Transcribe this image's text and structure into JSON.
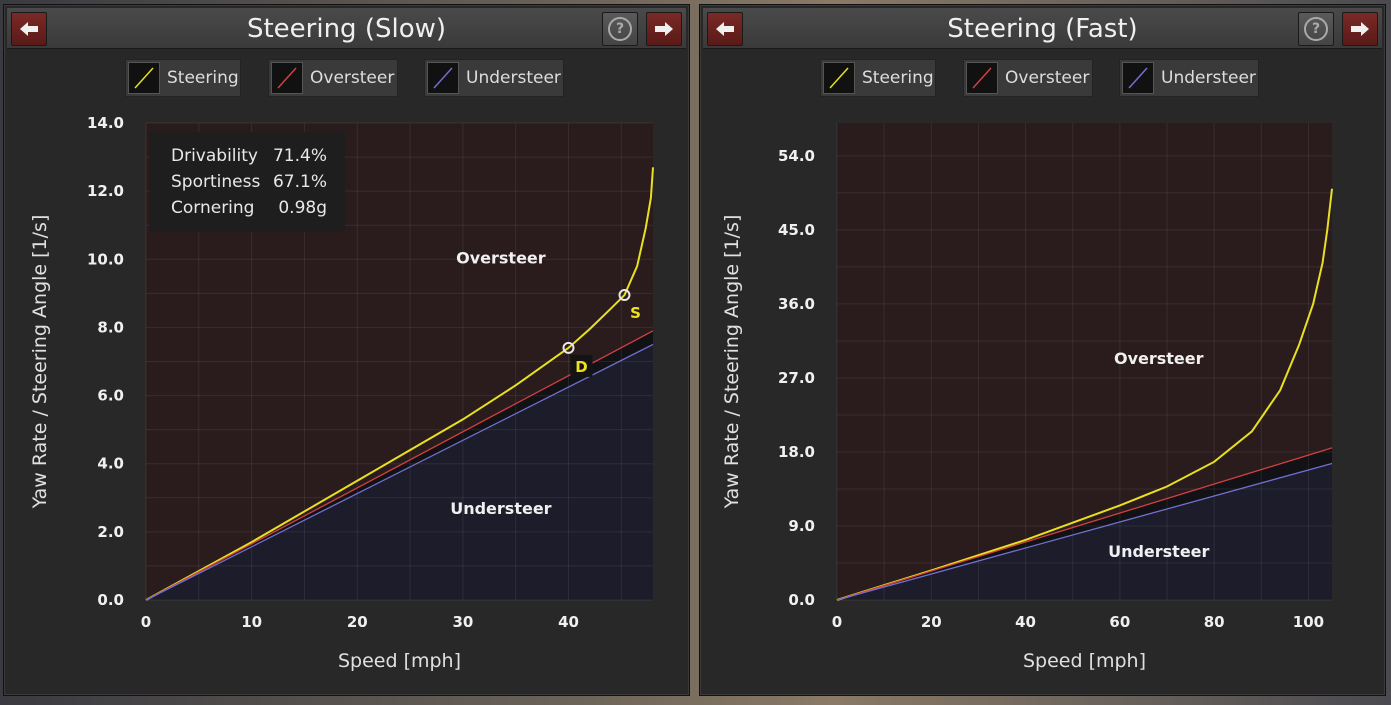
{
  "panels": [
    {
      "title": "Steering (Slow)",
      "legend": [
        {
          "label": "Steering",
          "color": "#e8e020"
        },
        {
          "label": "Oversteer",
          "color": "#d04040"
        },
        {
          "label": "Understeer",
          "color": "#7070d0"
        }
      ],
      "stats": [
        {
          "label": "Drivability",
          "value": "71.4%"
        },
        {
          "label": "Sportiness",
          "value": "67.1%"
        },
        {
          "label": "Cornering",
          "value": "0.98g"
        }
      ],
      "region_labels": {
        "over": "Oversteer",
        "under": "Understeer"
      },
      "markers": [
        {
          "label": "D",
          "x": 40,
          "y": 7.4
        },
        {
          "label": "S",
          "x": 45.3,
          "y": 8.95
        }
      ]
    },
    {
      "title": "Steering (Fast)",
      "legend": [
        {
          "label": "Steering",
          "color": "#e8e020"
        },
        {
          "label": "Oversteer",
          "color": "#d04040"
        },
        {
          "label": "Understeer",
          "color": "#7070d0"
        }
      ],
      "region_labels": {
        "over": "Oversteer",
        "under": "Understeer"
      }
    }
  ],
  "chart_data": [
    {
      "type": "line",
      "xlabel": "Speed [mph]",
      "ylabel": "Yaw Rate / Steering Angle [1/s]",
      "xlim": [
        0,
        48
      ],
      "ylim": [
        0,
        14.0
      ],
      "x_ticks": [
        0,
        10,
        20,
        30,
        40
      ],
      "y_ticks": [
        "0.0",
        "2.0",
        "4.0",
        "6.0",
        "8.0",
        "10.0",
        "12.0",
        "14.0"
      ],
      "grid": true,
      "series": [
        {
          "name": "Steering",
          "color": "#e8e020",
          "x": [
            0,
            10,
            20,
            30,
            35,
            40,
            42,
            44,
            45.3,
            46.5,
            47.3,
            47.8,
            48
          ],
          "y": [
            0,
            1.7,
            3.5,
            5.3,
            6.3,
            7.4,
            7.95,
            8.55,
            8.95,
            9.8,
            10.9,
            11.8,
            12.7
          ]
        },
        {
          "name": "Oversteer",
          "color": "#d04040",
          "x": [
            0,
            48
          ],
          "y": [
            0,
            7.9
          ]
        },
        {
          "name": "Understeer",
          "color": "#7070d0",
          "x": [
            0,
            48
          ],
          "y": [
            0,
            7.5
          ]
        }
      ]
    },
    {
      "type": "line",
      "xlabel": "Speed [mph]",
      "ylabel": "Yaw Rate / Steering Angle [1/s]",
      "xlim": [
        0,
        105
      ],
      "ylim": [
        0,
        58
      ],
      "x_ticks": [
        0,
        20,
        40,
        60,
        80,
        100
      ],
      "y_ticks": [
        "0.0",
        "9.0",
        "18.0",
        "27.0",
        "36.0",
        "45.0",
        "54.0"
      ],
      "grid": true,
      "series": [
        {
          "name": "Steering",
          "color": "#e8e020",
          "x": [
            0,
            20,
            40,
            60,
            70,
            80,
            88,
            94,
            98,
            101,
            103,
            104,
            105
          ],
          "y": [
            0,
            3.6,
            7.3,
            11.5,
            13.8,
            16.8,
            20.5,
            25.5,
            31,
            36,
            41,
            45,
            50
          ]
        },
        {
          "name": "Oversteer",
          "color": "#d04040",
          "x": [
            0,
            105
          ],
          "y": [
            0,
            18.5
          ]
        },
        {
          "name": "Understeer",
          "color": "#7070d0",
          "x": [
            0,
            105
          ],
          "y": [
            0,
            16.6
          ]
        }
      ]
    }
  ]
}
